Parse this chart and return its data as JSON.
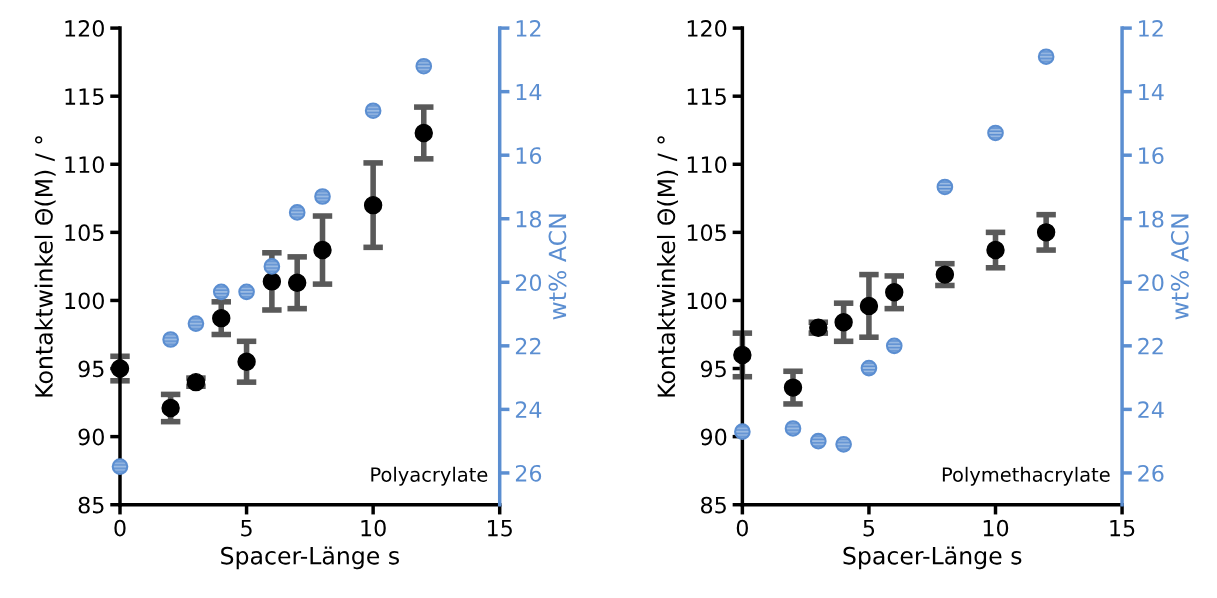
{
  "chart_data": [
    {
      "type": "scatter",
      "xlabel": "Spacer-Länge s",
      "ylabel": "Kontaktwinkel Θ(M) / °",
      "y2label": "wt% ACN",
      "xlim": [
        0,
        15
      ],
      "xticks": [
        0,
        5,
        10,
        15
      ],
      "ylim": [
        85,
        120
      ],
      "yticks": [
        85,
        90,
        95,
        100,
        105,
        110,
        115,
        120
      ],
      "y2lim": [
        27,
        12
      ],
      "y2ticks": [
        12,
        14,
        16,
        18,
        20,
        22,
        24,
        26
      ],
      "grid": false,
      "marker": "circle",
      "annotations": [
        "Polyacrylate"
      ],
      "series": [
        {
          "color": "#000000",
          "x": [
            0,
            2,
            3,
            4,
            5,
            6,
            7,
            8,
            10,
            12
          ],
          "values": [
            95.0,
            92.1,
            94.0,
            98.7,
            95.5,
            101.4,
            101.3,
            103.7,
            107.0,
            112.3
          ],
          "errors": [
            0.9,
            1.0,
            0.3,
            1.2,
            1.5,
            2.1,
            1.9,
            2.5,
            3.1,
            1.9
          ]
        },
        {
          "color": "#5b8ed1",
          "axis": "y2",
          "x": [
            0,
            2,
            3,
            4,
            5,
            6,
            7,
            8,
            10,
            12
          ],
          "values": [
            25.8,
            21.8,
            21.3,
            20.3,
            20.3,
            19.5,
            17.8,
            17.3,
            14.6,
            13.2
          ]
        }
      ]
    },
    {
      "type": "scatter",
      "xlabel": "Spacer-Länge s",
      "ylabel": "Kontaktwinkel Θ(M) / °",
      "y2label": "wt% ACN",
      "xlim": [
        0,
        15
      ],
      "xticks": [
        0,
        5,
        10,
        15
      ],
      "ylim": [
        85,
        120
      ],
      "yticks": [
        85,
        90,
        95,
        100,
        105,
        110,
        115,
        120
      ],
      "y2lim": [
        27,
        12
      ],
      "y2ticks": [
        12,
        14,
        16,
        18,
        20,
        22,
        24,
        26
      ],
      "grid": false,
      "marker": "circle",
      "annotations": [
        "Polymethacrylate"
      ],
      "series": [
        {
          "color": "#000000",
          "x": [
            0,
            2,
            3,
            4,
            5,
            6,
            8,
            10,
            12
          ],
          "values": [
            96.0,
            93.6,
            98.0,
            98.4,
            99.6,
            100.6,
            101.9,
            103.7,
            105.0
          ],
          "errors": [
            1.6,
            1.2,
            0.4,
            1.4,
            2.3,
            1.2,
            0.8,
            1.3,
            1.3
          ]
        },
        {
          "color": "#5b8ed1",
          "axis": "y2",
          "x": [
            0,
            2,
            3,
            4,
            5,
            6,
            8,
            10,
            12
          ],
          "values": [
            24.7,
            24.6,
            25.0,
            25.1,
            22.7,
            22.0,
            17.0,
            15.3,
            12.9
          ]
        }
      ]
    }
  ]
}
